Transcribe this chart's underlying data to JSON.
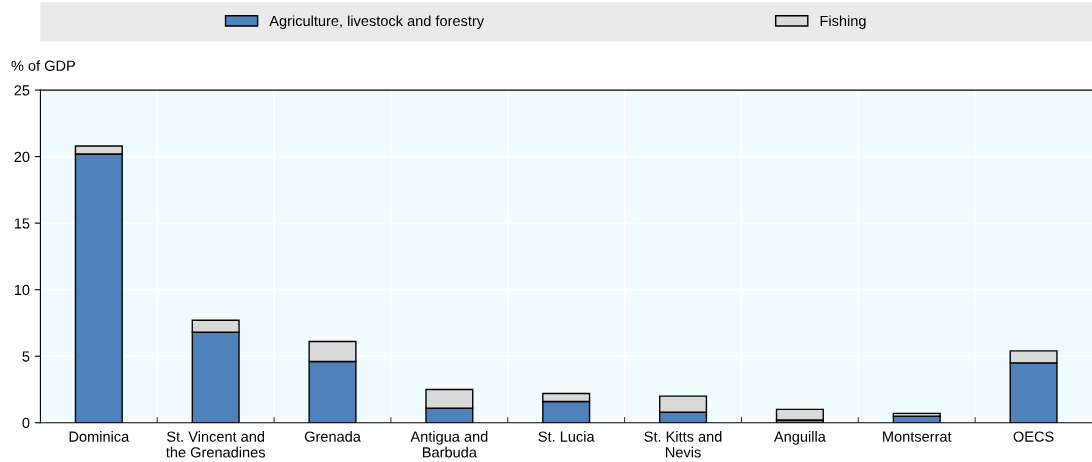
{
  "chart_data": {
    "type": "bar",
    "stacked": true,
    "ylabel": "% of GDP",
    "categories": [
      "Dominica",
      "St. Vincent and\nthe Grenadines",
      "Grenada",
      "Antigua and\nBarbuda",
      "St. Lucia",
      "St. Kitts and\nNevis",
      "Anguilla",
      "Montserrat",
      "OECS"
    ],
    "series": [
      {
        "name": "Agriculture, livestock and forestry",
        "color": "#4f81bd",
        "values": [
          20.2,
          6.8,
          4.6,
          1.1,
          1.6,
          0.8,
          0.2,
          0.5,
          4.5
        ]
      },
      {
        "name": "Fishing",
        "color": "#d9d9d9",
        "values": [
          0.6,
          0.9,
          1.5,
          1.4,
          0.6,
          1.2,
          0.8,
          0.2,
          0.9
        ]
      }
    ],
    "ylim": [
      0,
      25
    ],
    "yticks": [
      0,
      5,
      10,
      15,
      20,
      25
    ],
    "grid": true,
    "legend": "top"
  }
}
